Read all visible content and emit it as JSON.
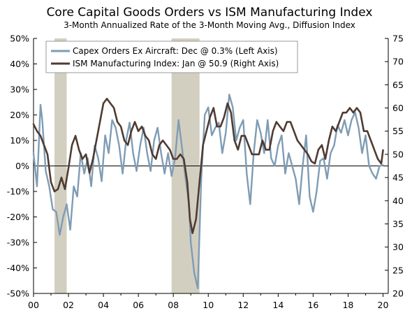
{
  "chart_data": {
    "type": "line",
    "title": "Core Capital Goods Orders vs ISM Manufacturing Index",
    "subtitle": "3-Month Annualized Rate of the 3-Month Moving Avg., Diffusion Index",
    "xlabel": "",
    "ylabel_left": "",
    "ylabel_right": "",
    "xlim": [
      2000,
      2020.3
    ],
    "ylim_left": [
      -50,
      50
    ],
    "ylim_right": [
      20,
      75
    ],
    "grid": false,
    "legend_position": "top-left",
    "x_ticks": [
      2000,
      2002,
      2004,
      2006,
      2008,
      2010,
      2012,
      2014,
      2016,
      2018,
      2020
    ],
    "x_tick_labels": [
      "00",
      "02",
      "04",
      "06",
      "08",
      "10",
      "12",
      "14",
      "16",
      "18",
      "20"
    ],
    "y_left_ticks": [
      -50,
      -40,
      -30,
      -20,
      -10,
      0,
      10,
      20,
      30,
      40,
      50
    ],
    "y_left_tick_labels": [
      "-50%",
      "-40%",
      "-30%",
      "-20%",
      "-10%",
      "0%",
      "10%",
      "20%",
      "30%",
      "40%",
      "50%"
    ],
    "y_right_ticks": [
      20,
      25,
      30,
      35,
      40,
      45,
      50,
      55,
      60,
      65,
      70,
      75
    ],
    "y_right_tick_labels": [
      "20",
      "25",
      "30",
      "35",
      "40",
      "45",
      "50",
      "55",
      "60",
      "65",
      "70",
      "75"
    ],
    "recessions": [
      [
        2001.2,
        2001.9
      ],
      [
        2007.9,
        2009.5
      ]
    ],
    "series": [
      {
        "name": "Capex Orders Ex Aircraft: Dec @ 0.3% (Left Axis)",
        "axis": "left",
        "color": "#7f9cb4",
        "x": [
          2000.0,
          2000.2,
          2000.4,
          2000.5,
          2000.7,
          2000.9,
          2001.1,
          2001.3,
          2001.5,
          2001.7,
          2001.9,
          2002.1,
          2002.3,
          2002.5,
          2002.7,
          2002.9,
          2003.1,
          2003.3,
          2003.5,
          2003.7,
          2003.9,
          2004.1,
          2004.3,
          2004.5,
          2004.7,
          2004.9,
          2005.1,
          2005.3,
          2005.5,
          2005.7,
          2005.9,
          2006.1,
          2006.3,
          2006.5,
          2006.7,
          2006.9,
          2007.1,
          2007.3,
          2007.5,
          2007.7,
          2007.9,
          2008.1,
          2008.3,
          2008.5,
          2008.7,
          2008.9,
          2009.0,
          2009.2,
          2009.4,
          2009.6,
          2009.8,
          2010.0,
          2010.2,
          2010.4,
          2010.6,
          2010.8,
          2011.0,
          2011.2,
          2011.4,
          2011.6,
          2011.8,
          2012.0,
          2012.2,
          2012.4,
          2012.6,
          2012.8,
          2013.0,
          2013.2,
          2013.4,
          2013.6,
          2013.8,
          2014.0,
          2014.2,
          2014.4,
          2014.6,
          2014.8,
          2015.0,
          2015.2,
          2015.4,
          2015.6,
          2015.8,
          2016.0,
          2016.2,
          2016.4,
          2016.6,
          2016.8,
          2017.0,
          2017.2,
          2017.4,
          2017.6,
          2017.8,
          2018.0,
          2018.2,
          2018.4,
          2018.6,
          2018.8,
          2019.0,
          2019.2,
          2019.4,
          2019.6,
          2019.8,
          2020.0
        ],
        "y": [
          5,
          -8,
          24,
          18,
          -2,
          -8,
          -17,
          -18,
          -27,
          -20,
          -15,
          -25,
          -8,
          -12,
          5,
          -3,
          3,
          -8,
          8,
          3,
          -6,
          12,
          5,
          18,
          15,
          8,
          -3,
          10,
          17,
          5,
          -2,
          8,
          15,
          5,
          -2,
          10,
          15,
          5,
          -3,
          5,
          -4,
          3,
          18,
          7,
          -5,
          -15,
          -30,
          -42,
          -48,
          -5,
          20,
          23,
          12,
          15,
          17,
          5,
          13,
          28,
          23,
          10,
          15,
          18,
          -3,
          -15,
          5,
          18,
          13,
          5,
          18,
          3,
          0,
          8,
          12,
          -3,
          5,
          0,
          -5,
          -15,
          0,
          12,
          -12,
          -18,
          -10,
          2,
          3,
          -5,
          5,
          8,
          16,
          13,
          18,
          12,
          18,
          21,
          15,
          5,
          12,
          0,
          -3,
          -5,
          0,
          0.3
        ]
      },
      {
        "name": "ISM Manufacturing Index: Jan @ 50.9 (Right Axis)",
        "axis": "right",
        "color": "#4f3b32",
        "x": [
          2000.0,
          2000.2,
          2000.4,
          2000.6,
          2000.8,
          2001.0,
          2001.2,
          2001.4,
          2001.6,
          2001.8,
          2002.0,
          2002.2,
          2002.4,
          2002.6,
          2002.8,
          2003.0,
          2003.2,
          2003.4,
          2003.6,
          2003.8,
          2004.0,
          2004.2,
          2004.4,
          2004.6,
          2004.8,
          2005.0,
          2005.2,
          2005.4,
          2005.6,
          2005.8,
          2006.0,
          2006.2,
          2006.4,
          2006.6,
          2006.8,
          2007.0,
          2007.2,
          2007.4,
          2007.6,
          2007.8,
          2008.0,
          2008.2,
          2008.4,
          2008.6,
          2008.8,
          2008.95,
          2009.1,
          2009.3,
          2009.5,
          2009.7,
          2009.9,
          2010.1,
          2010.3,
          2010.5,
          2010.7,
          2010.9,
          2011.1,
          2011.3,
          2011.5,
          2011.7,
          2011.9,
          2012.1,
          2012.3,
          2012.5,
          2012.7,
          2012.9,
          2013.1,
          2013.3,
          2013.5,
          2013.7,
          2013.9,
          2014.1,
          2014.3,
          2014.5,
          2014.7,
          2014.9,
          2015.1,
          2015.3,
          2015.5,
          2015.7,
          2015.9,
          2016.1,
          2016.3,
          2016.5,
          2016.7,
          2016.9,
          2017.1,
          2017.3,
          2017.5,
          2017.7,
          2017.9,
          2018.1,
          2018.3,
          2018.5,
          2018.7,
          2018.9,
          2019.1,
          2019.3,
          2019.5,
          2019.7,
          2019.9,
          2020.0
        ],
        "y": [
          56.5,
          55,
          54,
          52,
          50,
          44,
          42,
          42.5,
          45,
          42.5,
          47,
          52,
          54,
          51,
          49,
          50,
          46,
          49,
          53,
          57,
          61,
          62,
          61,
          60,
          57,
          56,
          53,
          52,
          55,
          57,
          55,
          56,
          54,
          53,
          50,
          49,
          52,
          53,
          52,
          51,
          49,
          49,
          50,
          49,
          44,
          36,
          33,
          36,
          44,
          52,
          55,
          58,
          60,
          56,
          56,
          58,
          61,
          59,
          53,
          51,
          54,
          54,
          52,
          50,
          50,
          50,
          53,
          51,
          51,
          55,
          57,
          56,
          55,
          57,
          57,
          55,
          53,
          52,
          51,
          50,
          48.5,
          48,
          51,
          52,
          49,
          53,
          56,
          55,
          57,
          59,
          59,
          60,
          59,
          60,
          59,
          55,
          55,
          53,
          51,
          49,
          48,
          50.9
        ]
      }
    ]
  }
}
